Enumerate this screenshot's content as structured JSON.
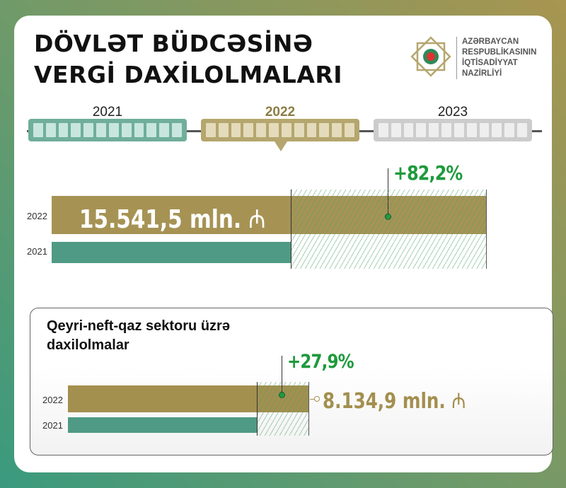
{
  "header": {
    "title_line1": "DÖVLƏT BÜDCƏSİNƏ",
    "title_line2": "VERGİ DAXİLOLMALARI"
  },
  "logo": {
    "icon": "ministry-emblem-icon",
    "lines": [
      "AZƏRBAYCAN",
      "RESPUBLİKASININ",
      "İQTİSADİYYAT",
      "NAZİRLİYİ"
    ]
  },
  "timeline": {
    "years": [
      "2021",
      "2022",
      "2023"
    ],
    "selected": "2022",
    "colors": [
      "#6fae9a",
      "#b5a66e",
      "#cccccc"
    ]
  },
  "colors": {
    "y2022": "#a38f4e",
    "y2021": "#4f9a84",
    "growth": "#1e9a3c"
  },
  "chart_data": [
    {
      "type": "bar",
      "orientation": "horizontal",
      "categories": [
        "2022",
        "2021"
      ],
      "values": [
        15541.5,
        8529.9
      ],
      "unit": "mln. ₼",
      "value_label": "15.541,5 mln.",
      "growth_label": "+82,2%",
      "growth": 82.2
    },
    {
      "type": "bar",
      "orientation": "horizontal",
      "title": "Qeyri-neft-qaz sektoru üzrə daxilolmalar",
      "categories": [
        "2022",
        "2021"
      ],
      "values": [
        8134.9,
        6360.4
      ],
      "unit": "mln. ₼",
      "value_label": "8.134,9 mln.",
      "growth_label": "+27,9%",
      "growth": 27.9
    }
  ],
  "currency_symbol": "₼"
}
